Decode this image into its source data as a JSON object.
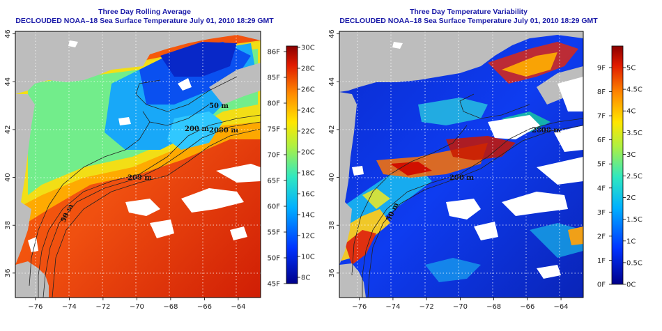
{
  "left_panel": {
    "title": "Three Day Rolling Average",
    "subtitle": "DECLOUDED NOAA–18 Sea Surface Temperature July 01, 2010 18:29 GMT",
    "colorbar_f": [
      "86F",
      "85F",
      "80F",
      "75F",
      "70F",
      "65F",
      "60F",
      "55F",
      "50F",
      "45F"
    ],
    "colorbar_c": [
      "30C",
      "28C",
      "26C",
      "24C",
      "22C",
      "20C",
      "18C",
      "16C",
      "14C",
      "12C",
      "10C",
      "8C"
    ],
    "contours": [
      "2000 m",
      "200 m",
      "50 m",
      "200 m",
      "50 m"
    ]
  },
  "right_panel": {
    "title": "Three Day Temperature Variability",
    "subtitle": "DECLOUDED NOAA–18 Sea Surface Temperature July 01, 2010 18:29 GMT",
    "colorbar_f": [
      "9F",
      "8F",
      "7F",
      "6F",
      "5F",
      "4F",
      "3F",
      "2F",
      "1F",
      "0F"
    ],
    "colorbar_c": [
      "5C",
      "4.5C",
      "4C",
      "3.5C",
      "3C",
      "2.5C",
      "2C",
      "1.5C",
      "1C",
      "0.5C",
      "0C"
    ],
    "contours": [
      "2000 m",
      "200 m",
      "50 m"
    ]
  },
  "axes": {
    "lon_ticks": [
      "−76",
      "−74",
      "−72",
      "−70",
      "−68",
      "−66",
      "−64"
    ],
    "lat_ticks": [
      "36",
      "38",
      "40",
      "42",
      "44",
      "46"
    ]
  },
  "colors": {
    "land": "#bdbdbd",
    "cloud": "#ffffff",
    "title": "#1a1aa8"
  }
}
